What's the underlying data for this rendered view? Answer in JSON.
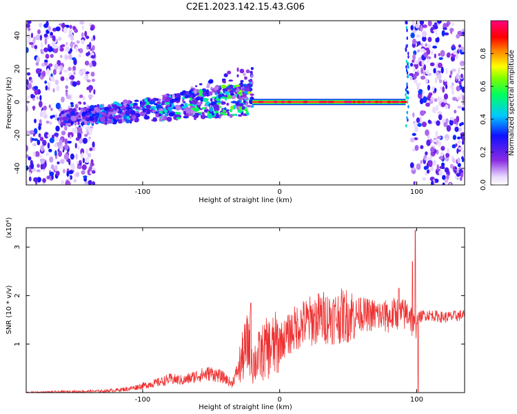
{
  "title": "C2E1.2023.142.15.43.G06",
  "colors": {
    "snr_line": "#ee3030",
    "frame": "#000000"
  },
  "chart_data": [
    {
      "type": "heatmap",
      "xlabel": "Height of straight line (km)",
      "ylabel": "Frequency (Hz)",
      "xlim": [
        -185,
        135
      ],
      "ylim": [
        -50,
        49
      ],
      "x_ticks": [
        {
          "v": -100,
          "label": "-100"
        },
        {
          "v": 0,
          "label": "0"
        },
        {
          "v": 100,
          "label": "100"
        }
      ],
      "y_ticks": [
        {
          "v": -40,
          "label": "-40"
        },
        {
          "v": -20,
          "label": "-20"
        },
        {
          "v": 0,
          "label": "0"
        },
        {
          "v": 20,
          "label": "20"
        },
        {
          "v": 40,
          "label": "40"
        }
      ],
      "colorbar": {
        "label": "Normalized spectral amplitude",
        "range": [
          0,
          1
        ],
        "ticks": [
          {
            "v": 0.0,
            "label": "0.0"
          },
          {
            "v": 0.2,
            "label": "0.2"
          },
          {
            "v": 0.4,
            "label": "0.4"
          },
          {
            "v": 0.6,
            "label": "0.6"
          },
          {
            "v": 0.8,
            "label": "0.8"
          }
        ],
        "scale": "purple-blue-cyan-green-yellow-red-magenta"
      },
      "features": [
        {
          "region": "noise",
          "x_range": [
            -185,
            -135
          ],
          "y_range": [
            -50,
            49
          ]
        },
        {
          "region": "noise",
          "x_range": [
            96,
            135
          ],
          "y_range": [
            -50,
            49
          ]
        },
        {
          "region": "echo",
          "x_range": [
            -160,
            -20
          ],
          "y_center": -4,
          "y_spread": 8
        },
        {
          "region": "line",
          "x_range": [
            -20,
            92
          ],
          "y_center": 0,
          "amplitude": 0.95
        }
      ]
    },
    {
      "type": "line",
      "xlabel": "Height of straight line (km)",
      "ylabel": "SNR (10 * v/v)",
      "multiplier_label": "(x10⁴)",
      "xlim": [
        -185,
        135
      ],
      "ylim": [
        0,
        3.4
      ],
      "x_ticks": [
        {
          "v": -100,
          "label": "-100"
        },
        {
          "v": 0,
          "label": "0"
        },
        {
          "v": 100,
          "label": "100"
        }
      ],
      "y_ticks": [
        {
          "v": 1,
          "label": "1"
        },
        {
          "v": 2,
          "label": "2"
        },
        {
          "v": 3,
          "label": "3"
        }
      ],
      "series": [
        {
          "x": [
            -185,
            -150,
            -130,
            -120,
            -110,
            -100,
            -90,
            -80,
            -70,
            -60,
            -50,
            -40,
            -35,
            -30,
            -25,
            -21,
            -20,
            -18,
            -15,
            -10,
            -5,
            0,
            5,
            10,
            15,
            20,
            25,
            30,
            40,
            50,
            60,
            65,
            70,
            80,
            85,
            90,
            95,
            98,
            100,
            102,
            105,
            110,
            120,
            135
          ],
          "y": [
            0.0,
            0.02,
            0.03,
            0.05,
            0.08,
            0.14,
            0.2,
            0.28,
            0.25,
            0.35,
            0.4,
            0.3,
            0.18,
            0.5,
            0.9,
            1.1,
            0.6,
            0.65,
            0.75,
            0.9,
            0.95,
            1.05,
            1.15,
            1.3,
            1.4,
            1.45,
            1.5,
            1.55,
            1.55,
            1.6,
            1.62,
            1.6,
            1.6,
            1.55,
            1.65,
            1.6,
            1.65,
            1.3,
            1.5,
            1.55,
            1.6,
            1.6,
            1.55,
            1.6
          ]
        }
      ],
      "spikes": [
        {
          "x": -21,
          "y": 1.85
        },
        {
          "x": 59,
          "y": 1.95
        },
        {
          "x": 78,
          "y": 1.8
        },
        {
          "x": 87,
          "y": 2.15
        },
        {
          "x": 97,
          "y": 2.7
        },
        {
          "x": 99,
          "y": 3.35
        },
        {
          "x": 101,
          "y": 0.02
        }
      ]
    }
  ]
}
